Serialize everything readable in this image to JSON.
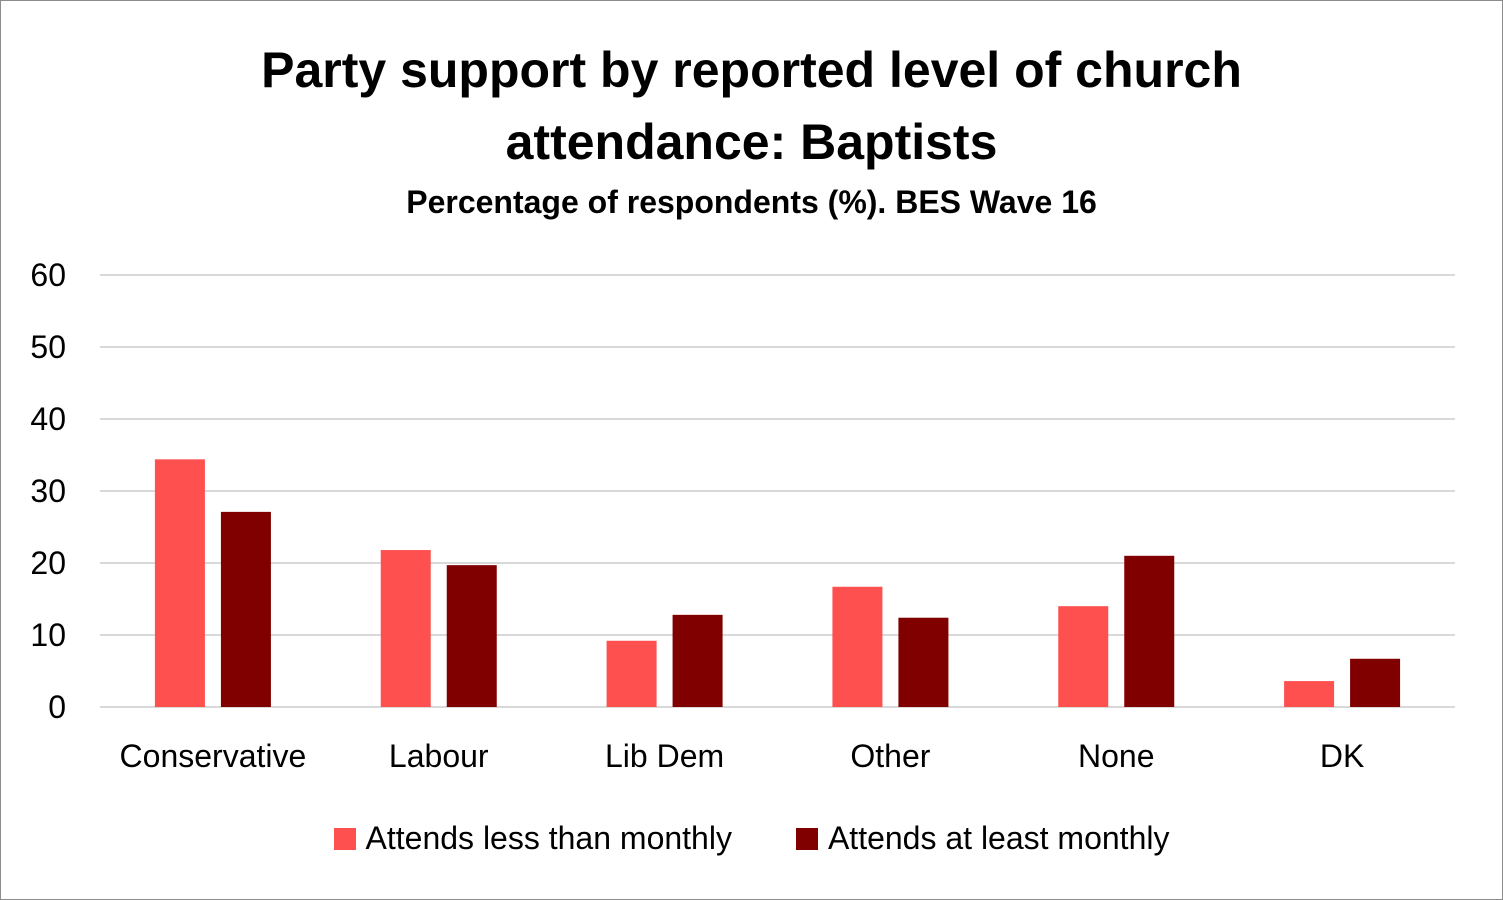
{
  "chart_data": {
    "type": "bar",
    "title": "Party support by reported level of church attendance: Baptists",
    "title_lines": [
      "Party support by reported level of church",
      "attendance: Baptists"
    ],
    "subtitle": "Percentage of respondents (%). BES  Wave 16",
    "xlabel": "",
    "ylabel": "",
    "ylim": [
      0,
      60
    ],
    "yticks": [
      0,
      10,
      20,
      30,
      40,
      50,
      60
    ],
    "grid": true,
    "legend_position": "bottom",
    "categories": [
      "Conservative",
      "Labour",
      "Lib Dem",
      "Other",
      "None",
      "DK"
    ],
    "series": [
      {
        "name": "Attends less than monthly",
        "color": "#ff5050",
        "values": [
          34.4,
          21.8,
          9.2,
          16.7,
          14.0,
          3.6
        ]
      },
      {
        "name": "Attends at least monthly",
        "color": "#800000",
        "values": [
          27.1,
          19.7,
          12.8,
          12.4,
          21.0,
          6.7
        ]
      }
    ]
  }
}
